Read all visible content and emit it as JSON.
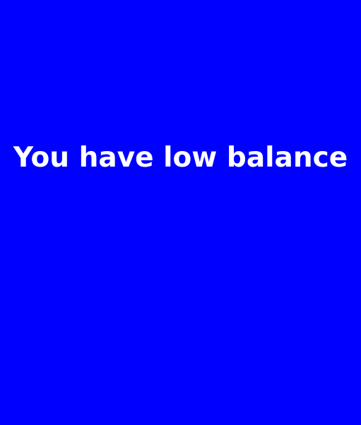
{
  "screen": {
    "background_color": "#0000ff",
    "text_color": "#ffffff",
    "message": "You have low balance"
  }
}
